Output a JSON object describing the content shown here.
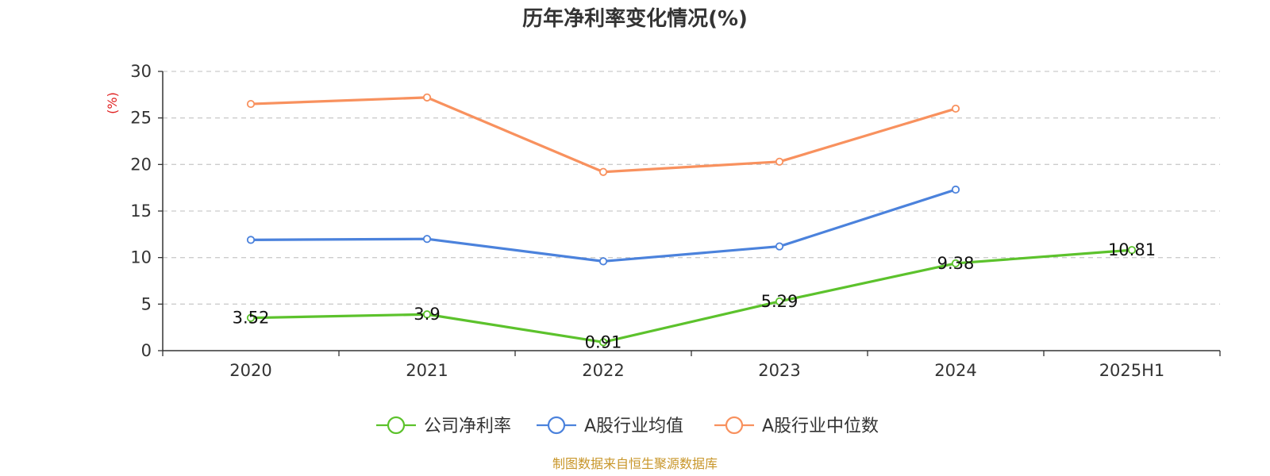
{
  "chart_data": {
    "type": "line",
    "title": "历年净利率变化情况(%)",
    "xlabel": "",
    "ylabel": "(%)",
    "categories": [
      "2020",
      "2021",
      "2022",
      "2023",
      "2024",
      "2025H1"
    ],
    "ylim": [
      0,
      30
    ],
    "yticks": [
      0,
      5,
      10,
      15,
      20,
      25,
      30
    ],
    "grid": true,
    "legend_position": "bottom-center",
    "series": [
      {
        "name": "公司净利率",
        "color": "#5cc22c",
        "values": [
          3.52,
          3.9,
          0.91,
          5.29,
          9.38,
          10.81
        ],
        "labels": [
          "3.52",
          "3.9",
          "0.91",
          "5.29",
          "9.38",
          "10.81"
        ],
        "show_labels": true
      },
      {
        "name": "A股行业均值",
        "color": "#4b82dc",
        "values": [
          11.9,
          12.0,
          9.6,
          11.2,
          17.3,
          null
        ],
        "show_labels": false
      },
      {
        "name": "A股行业中位数",
        "color": "#f8915e",
        "values": [
          26.5,
          27.2,
          19.2,
          20.3,
          26.0,
          null
        ],
        "show_labels": false
      }
    ]
  },
  "source": "制图数据来自恒生聚源数据库",
  "colors": {
    "axis": "#333333",
    "grid": "#cccccc",
    "ylabel": "#e02020",
    "source": "#c8962a"
  }
}
